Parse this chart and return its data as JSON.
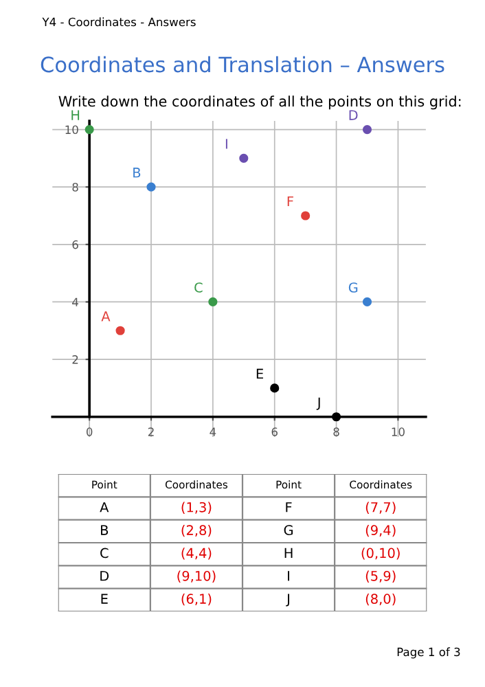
{
  "chart_data": {
    "type": "scatter",
    "title": "Coordinates and Translation – Answers",
    "subtitle": "Write down the coordinates of all the points on this grid:",
    "annotations": [
      "Y4 - Coordinates - Answers",
      "Point",
      "Coordinates",
      "Page 1 of 3",
      "(1,3)",
      "(2,8)",
      "(4,4)",
      "(9,10)",
      "(6,1)",
      "(7,7)",
      "(9,4)",
      "(0,10)",
      "(5,9)",
      "(8,0)"
    ],
    "xlim": [
      -1.2,
      10.9
    ],
    "ylim": [
      -0.7,
      10.3
    ],
    "xticks": [
      0,
      2,
      4,
      6,
      8,
      10
    ],
    "yticks": [
      2,
      4,
      6,
      8,
      10
    ],
    "grid": true,
    "marker": "circle",
    "series": [
      {
        "name": "A",
        "color": "#e0403a",
        "x": [
          1
        ],
        "values": [
          3
        ]
      },
      {
        "name": "B",
        "color": "#3a7fd0",
        "x": [
          2
        ],
        "values": [
          8
        ]
      },
      {
        "name": "C",
        "color": "#3a9a4a",
        "x": [
          4
        ],
        "values": [
          4
        ]
      },
      {
        "name": "D",
        "color": "#6a4fb0",
        "x": [
          9
        ],
        "values": [
          10
        ]
      },
      {
        "name": "E",
        "color": "#000000",
        "x": [
          6
        ],
        "values": [
          1
        ]
      },
      {
        "name": "F",
        "color": "#e0403a",
        "x": [
          7
        ],
        "values": [
          7
        ]
      },
      {
        "name": "G",
        "color": "#3a7fd0",
        "x": [
          9
        ],
        "values": [
          4
        ]
      },
      {
        "name": "H",
        "color": "#3a9a4a",
        "x": [
          0
        ],
        "values": [
          10
        ]
      },
      {
        "name": "I",
        "color": "#6a4fb0",
        "x": [
          5
        ],
        "values": [
          9
        ]
      },
      {
        "name": "J",
        "color": "#000000",
        "x": [
          8
        ],
        "values": [
          0
        ]
      }
    ]
  }
}
